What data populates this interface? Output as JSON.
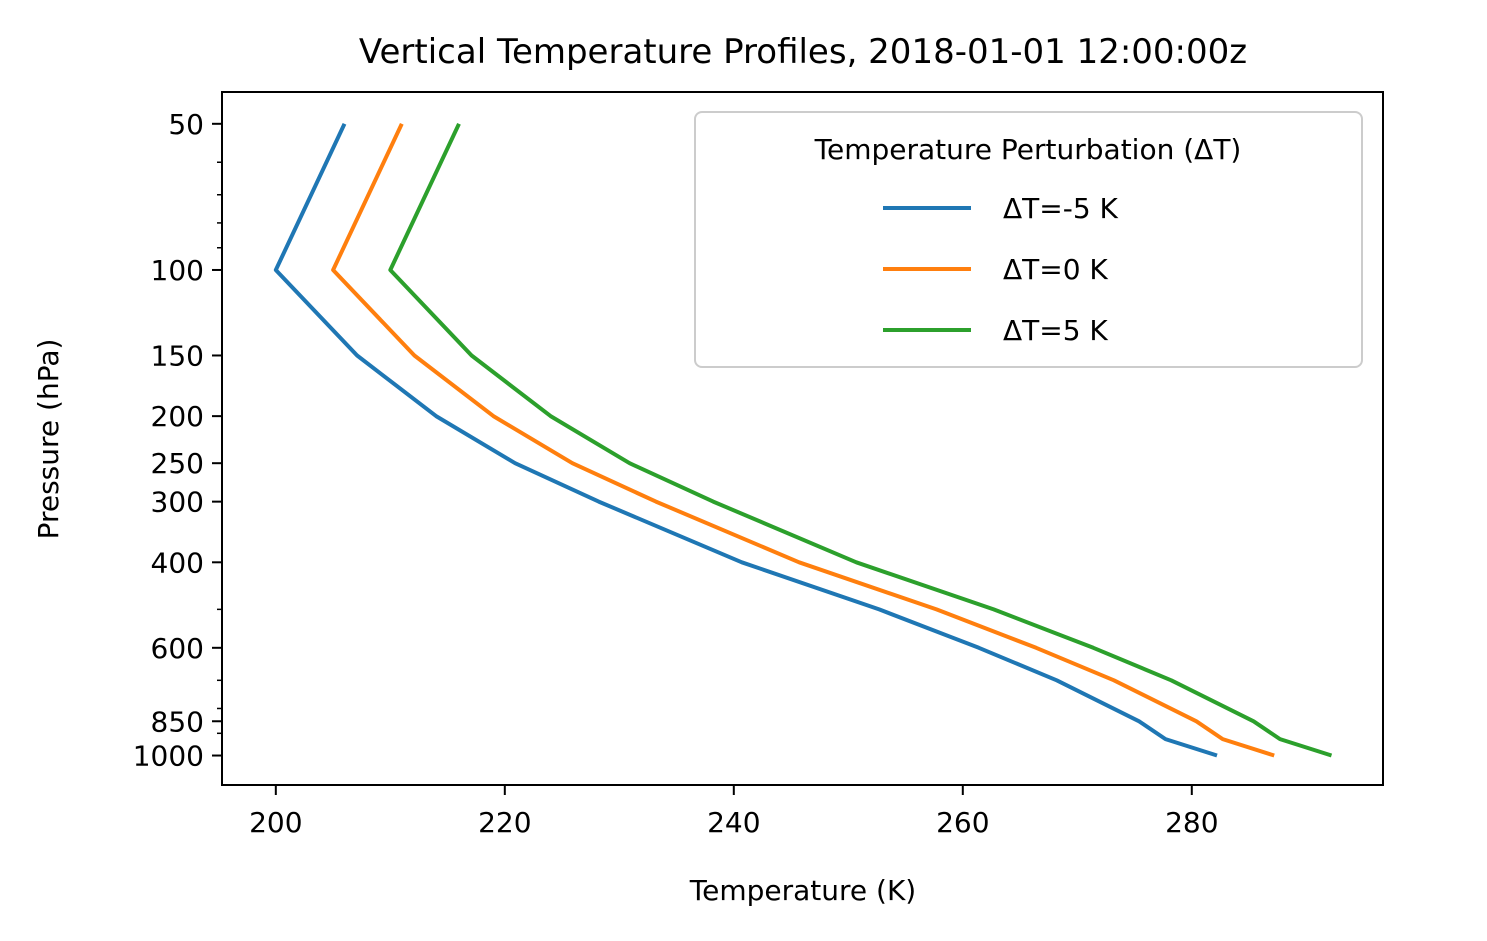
{
  "chart_data": {
    "type": "line",
    "title": "Vertical Temperature Profiles, 2018-01-01 12:00:00z",
    "xlabel": "Temperature (K)",
    "ylabel": "Pressure (hPa)",
    "xlim": [
      195.3,
      296.7
    ],
    "ylim": [
      1150,
      43
    ],
    "yscale": "log",
    "y_inverted": true,
    "grid": false,
    "xticks": [
      200,
      220,
      240,
      260,
      280
    ],
    "xtick_labels": [
      "200",
      "220",
      "240",
      "260",
      "280"
    ],
    "yticks": [
      50,
      100,
      150,
      200,
      250,
      300,
      400,
      600,
      850,
      1000
    ],
    "ytick_labels": [
      "50",
      "100",
      "150",
      "200",
      "250",
      "300",
      "400",
      "600",
      "850",
      "1000"
    ],
    "y_minor_ticks": [
      60,
      70,
      80,
      90,
      500,
      700,
      800,
      900
    ],
    "legend": {
      "title": "Temperature Perturbation (ΔT)",
      "position": "top-right"
    },
    "pressure": [
      1000,
      925,
      850,
      700,
      600,
      500,
      400,
      300,
      250,
      200,
      150,
      100,
      50
    ],
    "series": [
      {
        "name": "ΔT=-5 K",
        "color": "#1f77b4",
        "values": [
          282.2,
          277.7,
          275.4,
          268.2,
          261.4,
          252.7,
          240.7,
          228.2,
          220.9,
          214,
          207.1,
          200,
          206
        ]
      },
      {
        "name": "ΔT=0 K",
        "color": "#ff7f0e",
        "values": [
          287.2,
          282.7,
          280.4,
          273.2,
          266.4,
          257.7,
          245.7,
          233.2,
          225.9,
          219,
          212.1,
          205,
          211
        ]
      },
      {
        "name": "ΔT=5 K",
        "color": "#2ca02c",
        "values": [
          292.2,
          287.7,
          285.4,
          278.2,
          271.4,
          262.7,
          250.7,
          238.2,
          230.9,
          224,
          217.1,
          210,
          216
        ]
      }
    ]
  }
}
